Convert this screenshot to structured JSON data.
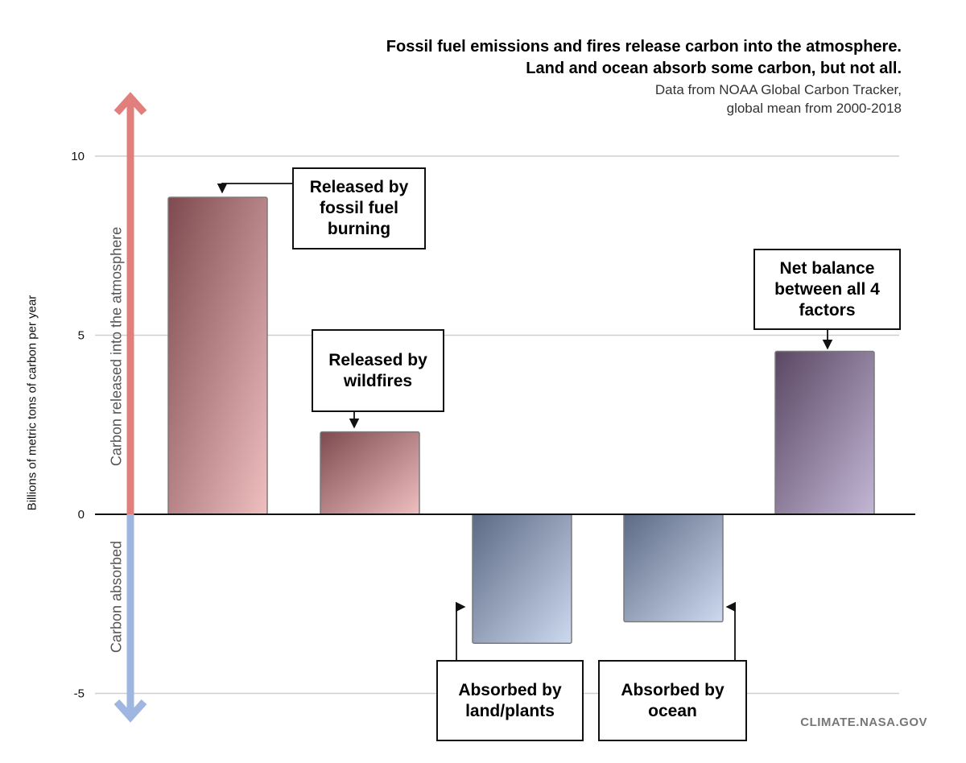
{
  "chart_data": {
    "type": "bar",
    "title": "Fossil fuel emissions and fires release carbon into the atmosphere.",
    "title_line2": "Land and ocean absorb some carbon, but not all.",
    "subtitle": "Data from NOAA Global Carbon Tracker,",
    "subtitle_line2": "global mean from 2000-2018",
    "ylabel": "Billions of metric tons of carbon per year",
    "ylabel_up": "Carbon released into the atmosphere",
    "ylabel_down": "Carbon absorbed",
    "ylim": [
      -5.5,
      10.5
    ],
    "yticks": [
      10,
      5,
      0,
      -5
    ],
    "grid": true,
    "categories": [
      "Released by fossil fuel burning",
      "Released by wildfires",
      "Absorbed by land/plants",
      "Absorbed by ocean",
      "Net balance between all 4 factors"
    ],
    "values": [
      8.85,
      2.3,
      -3.6,
      -3.0,
      4.55
    ],
    "colors": {
      "released": [
        "#7e4a4f",
        "#efbfc0"
      ],
      "absorbed": [
        "#5d6a84",
        "#cdd9ef"
      ],
      "net": [
        "#5a4763",
        "#c3b7d6"
      ],
      "arrow_up": "#e17f7d",
      "arrow_down": "#9fb6e0"
    }
  },
  "callouts": {
    "fossil": "Released by fossil fuel burning",
    "wildfires": "Released by wildfires",
    "land": "Absorbed by land/plants",
    "ocean": "Absorbed by ocean",
    "net": "Net balance between all 4 factors"
  },
  "credit": "CLIMATE.NASA.GOV"
}
